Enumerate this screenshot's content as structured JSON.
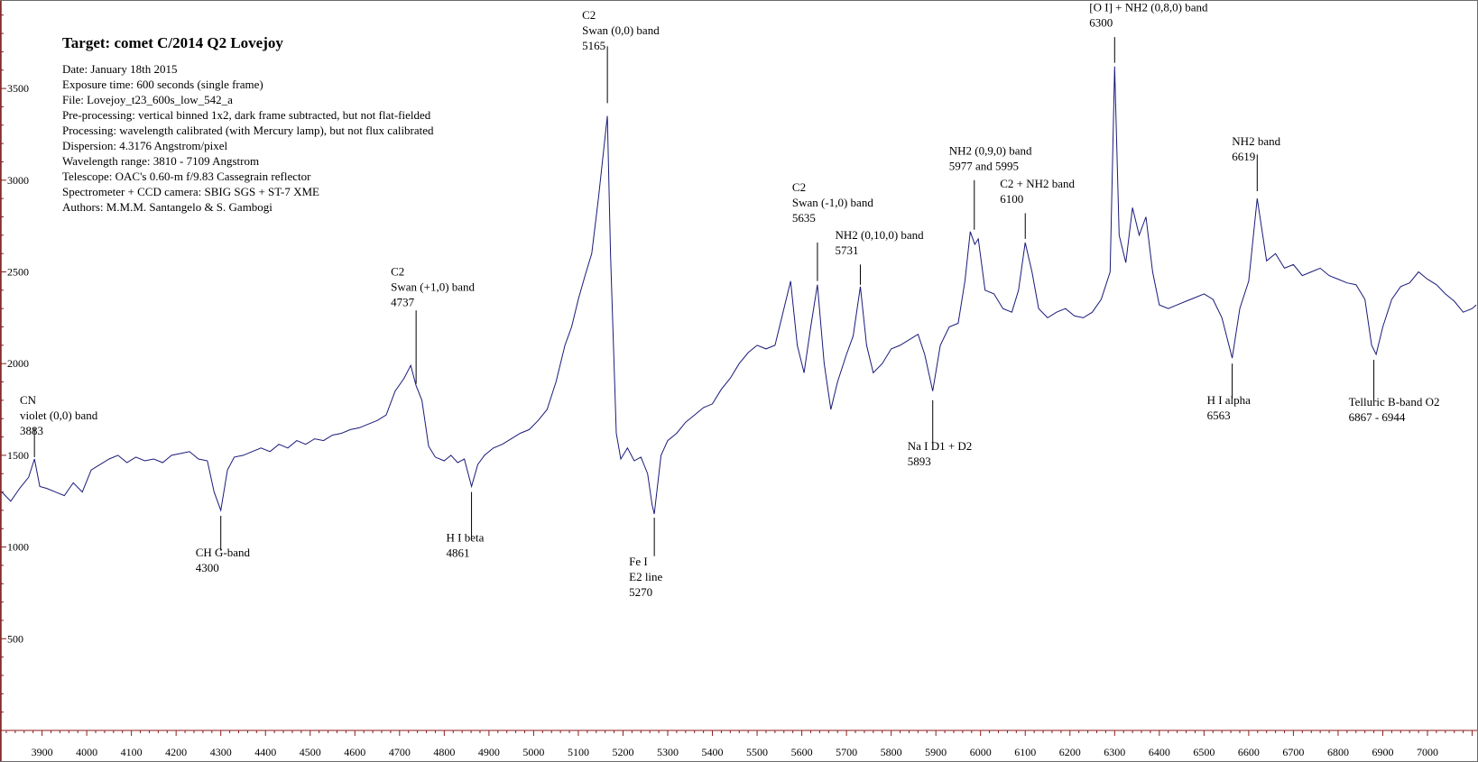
{
  "colors": {
    "spectrum": "#1a1a7a",
    "axis": "#8b1a1a",
    "text": "#000000"
  },
  "info": {
    "title": "Target: comet C/2014 Q2 Lovejoy",
    "lines": [
      "Date: January 18th 2015",
      "Exposure time: 600 seconds (single frame)",
      "File:   Lovejoy_t23_600s_low_542_a",
      "Pre-processing: vertical binned 1x2, dark frame subtracted, but not flat-fielded",
      "Processing: wavelength calibrated (with Mercury lamp), but not flux calibrated",
      "Dispersion:  4.3176  Angstrom/pixel",
      "Wavelength range:    3810 - 7109 Angstrom",
      "Telescope: OAC's 0.60-m f/9.83 Cassegrain reflector",
      "Spectrometer + CCD camera: SBIG SGS + ST-7 XME",
      "Authors: M.M.M. Santangelo & S. Gambogi"
    ]
  },
  "chart_data": {
    "type": "line",
    "title": "",
    "xlabel": "",
    "ylabel": "",
    "xlim": [
      3810,
      7109
    ],
    "ylim": [
      0,
      3950
    ],
    "grid": false,
    "x_ticks": [
      3900,
      4000,
      4100,
      4200,
      4300,
      4400,
      4500,
      4600,
      4700,
      4800,
      4900,
      5000,
      5100,
      5200,
      5300,
      5400,
      5500,
      5600,
      5700,
      5800,
      5900,
      6000,
      6100,
      6200,
      6300,
      6400,
      6500,
      6600,
      6700,
      6800,
      6900,
      7000
    ],
    "y_ticks": [
      500,
      1000,
      1500,
      2000,
      2500,
      3000,
      3500
    ],
    "series": [
      {
        "points": [
          [
            3810,
            1300
          ],
          [
            3830,
            1250
          ],
          [
            3850,
            1320
          ],
          [
            3870,
            1380
          ],
          [
            3883,
            1480
          ],
          [
            3895,
            1330
          ],
          [
            3910,
            1320
          ],
          [
            3930,
            1300
          ],
          [
            3950,
            1280
          ],
          [
            3970,
            1350
          ],
          [
            3990,
            1300
          ],
          [
            4010,
            1420
          ],
          [
            4030,
            1450
          ],
          [
            4050,
            1480
          ],
          [
            4070,
            1500
          ],
          [
            4090,
            1460
          ],
          [
            4110,
            1490
          ],
          [
            4130,
            1470
          ],
          [
            4150,
            1480
          ],
          [
            4170,
            1460
          ],
          [
            4190,
            1500
          ],
          [
            4210,
            1510
          ],
          [
            4230,
            1520
          ],
          [
            4250,
            1480
          ],
          [
            4270,
            1470
          ],
          [
            4285,
            1300
          ],
          [
            4300,
            1200
          ],
          [
            4315,
            1420
          ],
          [
            4330,
            1490
          ],
          [
            4350,
            1500
          ],
          [
            4370,
            1520
          ],
          [
            4390,
            1540
          ],
          [
            4410,
            1520
          ],
          [
            4430,
            1560
          ],
          [
            4450,
            1540
          ],
          [
            4470,
            1580
          ],
          [
            4490,
            1560
          ],
          [
            4510,
            1590
          ],
          [
            4530,
            1580
          ],
          [
            4550,
            1610
          ],
          [
            4570,
            1620
          ],
          [
            4590,
            1640
          ],
          [
            4610,
            1650
          ],
          [
            4630,
            1670
          ],
          [
            4650,
            1690
          ],
          [
            4670,
            1720
          ],
          [
            4690,
            1850
          ],
          [
            4710,
            1920
          ],
          [
            4725,
            1990
          ],
          [
            4737,
            1880
          ],
          [
            4750,
            1800
          ],
          [
            4765,
            1550
          ],
          [
            4780,
            1490
          ],
          [
            4800,
            1470
          ],
          [
            4815,
            1500
          ],
          [
            4830,
            1460
          ],
          [
            4845,
            1480
          ],
          [
            4861,
            1330
          ],
          [
            4875,
            1450
          ],
          [
            4890,
            1500
          ],
          [
            4910,
            1540
          ],
          [
            4930,
            1560
          ],
          [
            4950,
            1590
          ],
          [
            4970,
            1620
          ],
          [
            4990,
            1640
          ],
          [
            5010,
            1690
          ],
          [
            5030,
            1750
          ],
          [
            5050,
            1900
          ],
          [
            5070,
            2100
          ],
          [
            5085,
            2200
          ],
          [
            5100,
            2350
          ],
          [
            5115,
            2480
          ],
          [
            5130,
            2600
          ],
          [
            5145,
            2900
          ],
          [
            5165,
            3350
          ],
          [
            5172,
            2600
          ],
          [
            5185,
            1620
          ],
          [
            5195,
            1480
          ],
          [
            5210,
            1540
          ],
          [
            5225,
            1470
          ],
          [
            5240,
            1490
          ],
          [
            5255,
            1400
          ],
          [
            5265,
            1230
          ],
          [
            5270,
            1180
          ],
          [
            5285,
            1500
          ],
          [
            5300,
            1580
          ],
          [
            5320,
            1620
          ],
          [
            5340,
            1680
          ],
          [
            5360,
            1720
          ],
          [
            5380,
            1760
          ],
          [
            5400,
            1780
          ],
          [
            5420,
            1860
          ],
          [
            5440,
            1920
          ],
          [
            5460,
            2000
          ],
          [
            5480,
            2060
          ],
          [
            5500,
            2100
          ],
          [
            5520,
            2080
          ],
          [
            5540,
            2100
          ],
          [
            5560,
            2300
          ],
          [
            5575,
            2450
          ],
          [
            5590,
            2100
          ],
          [
            5605,
            1950
          ],
          [
            5620,
            2200
          ],
          [
            5635,
            2430
          ],
          [
            5650,
            2000
          ],
          [
            5665,
            1750
          ],
          [
            5680,
            1900
          ],
          [
            5700,
            2050
          ],
          [
            5715,
            2150
          ],
          [
            5731,
            2420
          ],
          [
            5745,
            2100
          ],
          [
            5760,
            1950
          ],
          [
            5780,
            2000
          ],
          [
            5800,
            2080
          ],
          [
            5820,
            2100
          ],
          [
            5840,
            2130
          ],
          [
            5860,
            2160
          ],
          [
            5875,
            2050
          ],
          [
            5893,
            1850
          ],
          [
            5910,
            2100
          ],
          [
            5930,
            2200
          ],
          [
            5950,
            2220
          ],
          [
            5965,
            2450
          ],
          [
            5977,
            2720
          ],
          [
            5987,
            2650
          ],
          [
            5995,
            2680
          ],
          [
            6010,
            2400
          ],
          [
            6030,
            2380
          ],
          [
            6050,
            2300
          ],
          [
            6070,
            2280
          ],
          [
            6085,
            2400
          ],
          [
            6100,
            2660
          ],
          [
            6115,
            2500
          ],
          [
            6130,
            2300
          ],
          [
            6150,
            2250
          ],
          [
            6170,
            2280
          ],
          [
            6190,
            2300
          ],
          [
            6210,
            2260
          ],
          [
            6230,
            2250
          ],
          [
            6250,
            2280
          ],
          [
            6270,
            2350
          ],
          [
            6290,
            2500
          ],
          [
            6300,
            3620
          ],
          [
            6310,
            2700
          ],
          [
            6325,
            2550
          ],
          [
            6340,
            2850
          ],
          [
            6355,
            2700
          ],
          [
            6370,
            2800
          ],
          [
            6385,
            2500
          ],
          [
            6400,
            2320
          ],
          [
            6420,
            2300
          ],
          [
            6440,
            2320
          ],
          [
            6460,
            2340
          ],
          [
            6480,
            2360
          ],
          [
            6500,
            2380
          ],
          [
            6520,
            2350
          ],
          [
            6540,
            2250
          ],
          [
            6563,
            2030
          ],
          [
            6580,
            2300
          ],
          [
            6600,
            2450
          ],
          [
            6619,
            2900
          ],
          [
            6640,
            2560
          ],
          [
            6660,
            2600
          ],
          [
            6680,
            2520
          ],
          [
            6700,
            2540
          ],
          [
            6720,
            2480
          ],
          [
            6740,
            2500
          ],
          [
            6760,
            2520
          ],
          [
            6780,
            2480
          ],
          [
            6800,
            2460
          ],
          [
            6820,
            2440
          ],
          [
            6840,
            2430
          ],
          [
            6860,
            2350
          ],
          [
            6875,
            2100
          ],
          [
            6885,
            2050
          ],
          [
            6900,
            2200
          ],
          [
            6920,
            2350
          ],
          [
            6940,
            2420
          ],
          [
            6960,
            2440
          ],
          [
            6980,
            2500
          ],
          [
            7000,
            2460
          ],
          [
            7020,
            2430
          ],
          [
            7040,
            2380
          ],
          [
            7060,
            2340
          ],
          [
            7080,
            2280
          ],
          [
            7100,
            2300
          ],
          [
            7109,
            2320
          ]
        ]
      }
    ],
    "annotations": [
      {
        "lines": [
          "CN",
          "violet (0,0) band",
          "3883"
        ],
        "x": 3883,
        "marker_from": 1650,
        "marker_to": 1490,
        "label_y": 1780
      },
      {
        "lines": [
          "CH G-band",
          "4300"
        ],
        "x": 4300,
        "marker_from": 1170,
        "marker_to": 980,
        "label_y": 950
      },
      {
        "lines": [
          "C2",
          "Swan (+1,0) band",
          "4737"
        ],
        "x": 4737,
        "marker_from": 2290,
        "marker_to": 1890,
        "label_y": 2480
      },
      {
        "lines": [
          "H I beta",
          "4861"
        ],
        "x": 4861,
        "marker_from": 1300,
        "marker_to": 1050,
        "label_y": 1030
      },
      {
        "lines": [
          "C2",
          "Swan (0,0) band",
          "5165"
        ],
        "x": 5165,
        "marker_from": 3730,
        "marker_to": 3420,
        "label_y": 3880
      },
      {
        "lines": [
          "Fe I",
          "E2 line",
          "5270"
        ],
        "x": 5270,
        "marker_from": 1160,
        "marker_to": 950,
        "label_y": 900
      },
      {
        "lines": [
          "C2",
          "Swan (-1,0) band",
          "5635"
        ],
        "x": 5635,
        "marker_from": 2660,
        "marker_to": 2450,
        "label_y": 2940
      },
      {
        "lines": [
          "NH2 (0,10,0) band",
          "5731"
        ],
        "x": 5731,
        "marker_from": 2540,
        "marker_to": 2430,
        "label_y": 2680
      },
      {
        "lines": [
          "Na I D1 + D2",
          "5893"
        ],
        "x": 5893,
        "marker_from": 1800,
        "marker_to": 1560,
        "label_y": 1530
      },
      {
        "lines": [
          "NH2  (0,9,0) band",
          "5977 and 5995"
        ],
        "x": 5986,
        "marker_from": 3000,
        "marker_to": 2730,
        "label_y": 3140
      },
      {
        "lines": [
          "C2 + NH2 band",
          "6100"
        ],
        "x": 6100,
        "marker_from": 2820,
        "marker_to": 2680,
        "label_y": 2960
      },
      {
        "lines": [
          "[O I] + NH2 (0,8,0) band",
          "6300"
        ],
        "x": 6300,
        "marker_from": 3780,
        "marker_to": 3640,
        "label_y": 3920
      },
      {
        "lines": [
          "NH2 band",
          "6619"
        ],
        "x": 6619,
        "marker_from": 3140,
        "marker_to": 2940,
        "label_y": 3190
      },
      {
        "lines": [
          "H I alpha",
          "6563"
        ],
        "x": 6563,
        "marker_from": 2000,
        "marker_to": 1810,
        "label_y": 1780
      },
      {
        "lines": [
          "Telluric B-band O2",
          "6867 - 6944"
        ],
        "x": 6880,
        "marker_from": 2020,
        "marker_to": 1800,
        "label_y": 1770
      }
    ]
  }
}
